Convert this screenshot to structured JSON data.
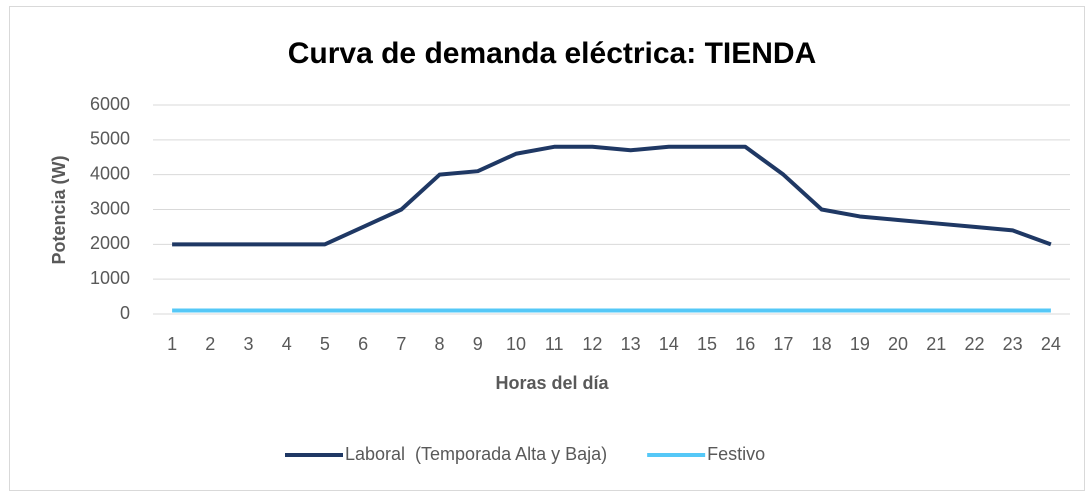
{
  "chart_data": {
    "type": "line",
    "title": "Curva de demanda eléctrica: TIENDA",
    "x_label": "Horas del día",
    "y_label": "Potencia (W)",
    "categories": [
      "1",
      "2",
      "3",
      "4",
      "5",
      "6",
      "7",
      "8",
      "9",
      "10",
      "11",
      "12",
      "13",
      "14",
      "15",
      "16",
      "17",
      "18",
      "19",
      "20",
      "21",
      "22",
      "23",
      "24"
    ],
    "series": [
      {
        "name": "Laboral  (Temporada Alta y Baja)",
        "color": "#1f3864",
        "values": [
          2000,
          2000,
          2000,
          2000,
          2000,
          2500,
          3000,
          4000,
          4100,
          4600,
          4800,
          4800,
          4700,
          4800,
          4800,
          4800,
          4000,
          3000,
          2800,
          2700,
          2600,
          2500,
          2400,
          2000
        ]
      },
      {
        "name": "Festivo",
        "color": "#55c8f7",
        "values": [
          100,
          100,
          100,
          100,
          100,
          100,
          100,
          100,
          100,
          100,
          100,
          100,
          100,
          100,
          100,
          100,
          100,
          100,
          100,
          100,
          100,
          100,
          100,
          100
        ]
      }
    ],
    "ylim": [
      0,
      6000
    ],
    "yticks": [
      0,
      1000,
      2000,
      3000,
      4000,
      5000,
      6000
    ],
    "grid": true,
    "legend": "bottom"
  }
}
